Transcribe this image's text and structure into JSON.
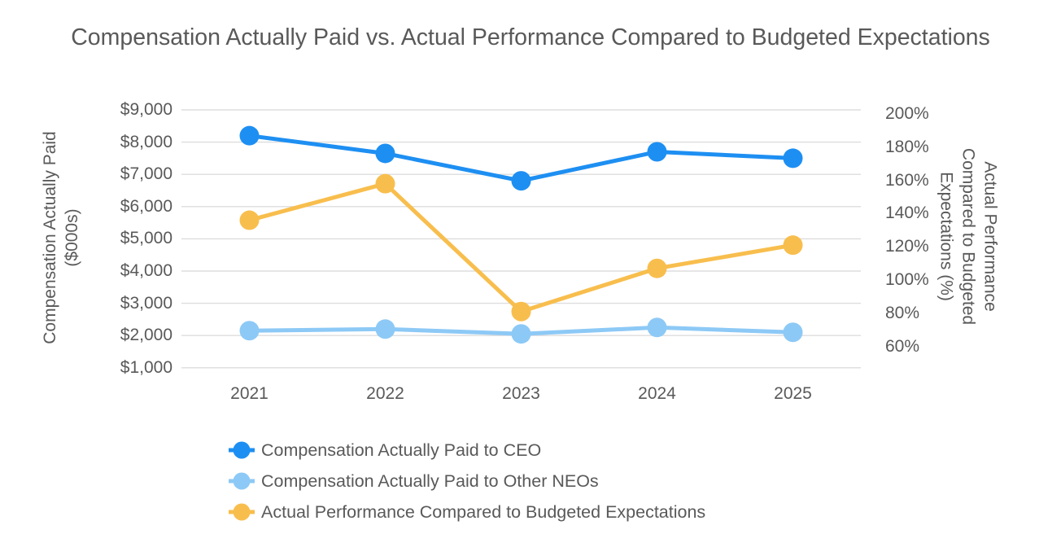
{
  "chart_data": {
    "type": "line",
    "title": "Compensation Actually Paid vs. Actual Performance Compared to Budgeted Expectations",
    "categories": [
      "2021",
      "2022",
      "2023",
      "2024",
      "2025"
    ],
    "series": [
      {
        "name": "Compensation Actually Paid to CEO",
        "axis": "left",
        "color": "#1E8FF2",
        "marker": "circle",
        "values": [
          8200,
          7650,
          6800,
          7700,
          7500
        ]
      },
      {
        "name": "Compensation Actually Paid to Other NEOs",
        "axis": "left",
        "color": "#8DC9F6",
        "marker": "circle",
        "values": [
          2150,
          2200,
          2050,
          2250,
          2100
        ]
      },
      {
        "name": "Actual Performance Compared to Budgeted Expectations",
        "axis": "right",
        "color": "#F8BE4D",
        "marker": "circle",
        "values": [
          136,
          158,
          81,
          107,
          121
        ]
      }
    ],
    "left_axis": {
      "label": "Compensation Actually Paid ($000s)",
      "tick_labels": [
        "$9,000",
        "$8,000",
        "$7,000",
        "$6,000",
        "$5,000",
        "$4,000",
        "$3,000",
        "$2,000",
        "$1,000"
      ],
      "tick_values": [
        9000,
        8000,
        7000,
        6000,
        5000,
        4000,
        3000,
        2000,
        1000
      ],
      "range": [
        1000,
        9000
      ]
    },
    "right_axis": {
      "label": "Actual Performance Compared to Budgeted Expectations (%)",
      "tick_labels": [
        "200%",
        "180%",
        "160%",
        "140%",
        "120%",
        "100%",
        "80%",
        "60%"
      ],
      "tick_values": [
        200,
        180,
        160,
        140,
        120,
        100,
        80,
        60
      ],
      "range": [
        60,
        200
      ]
    },
    "grid": true,
    "legend_position": "bottom-left",
    "colors": {
      "text": "#595959",
      "gridline": "#DDDDDD",
      "background": "#FFFFFF"
    }
  }
}
